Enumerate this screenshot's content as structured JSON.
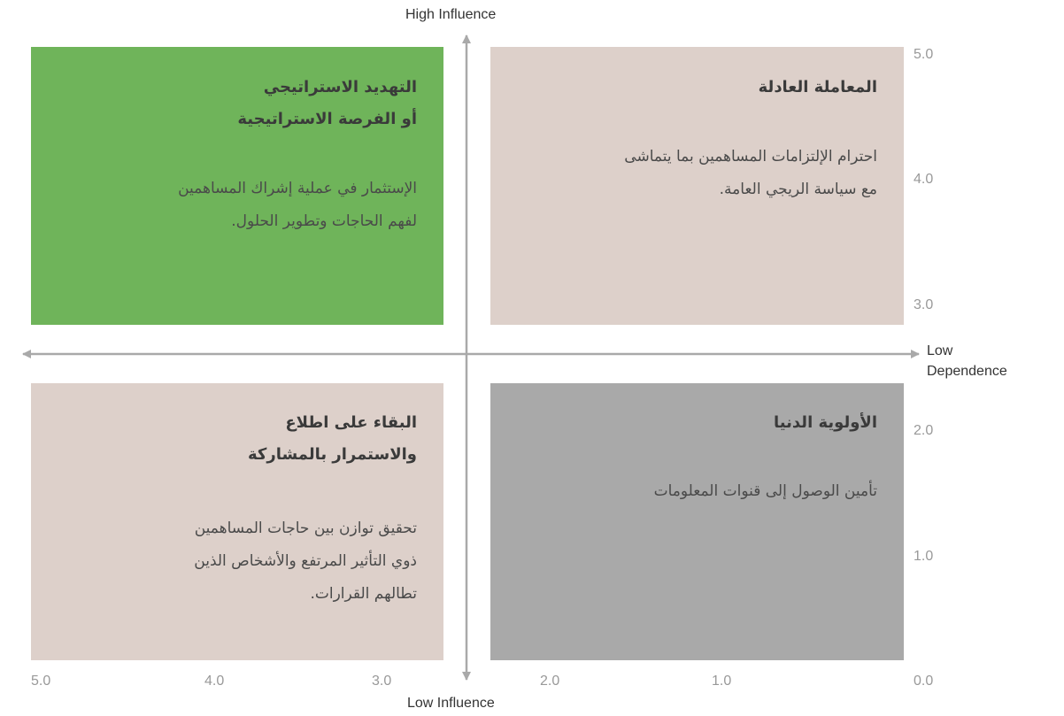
{
  "axes": {
    "top_label": "High Influence",
    "bottom_label": "Low Influence",
    "right_label_line1": "Low",
    "right_label_line2": "Dependence",
    "y_ticks": [
      "5.0",
      "4.0",
      "3.0",
      "2.0",
      "1.0",
      "0.0"
    ],
    "x_ticks": [
      "5.0",
      "4.0",
      "3.0",
      "2.0",
      "1.0"
    ]
  },
  "colors": {
    "top_left": "#6fb45a",
    "top_right": "#ddd0ca",
    "bottom_left": "#ddd0ca",
    "bottom_right": "#a9a9a9",
    "axis": "#a9a9a9"
  },
  "quadrants": {
    "top_left": {
      "title_line1": "التهديد الاستراتيجي",
      "title_line2": "أو الفرصة الاستراتيجية",
      "body_line1": "الإستثمار في عملية إشراك المساهمين",
      "body_line2": "لفهم الحاجات وتطوير الحلول."
    },
    "top_right": {
      "title_line1": "المعاملة العادلة",
      "body_line1": "احترام الإلتزامات المساهمين بما يتماشى",
      "body_line2": "مع سياسة الريجي العامة."
    },
    "bottom_left": {
      "title_line1": "البقاء على اطلاع",
      "title_line2": "والاستمرار بالمشاركة",
      "body_line1": "تحقيق توازن بين حاجات المساهمين",
      "body_line2": "ذوي التأثير المرتفع والأشخاص الذين",
      "body_line3": "تطالهم القرارات."
    },
    "bottom_right": {
      "title_line1": "الأولوية الدنيا",
      "body_line1": "تأمين الوصول إلى قنوات المعلومات"
    }
  }
}
